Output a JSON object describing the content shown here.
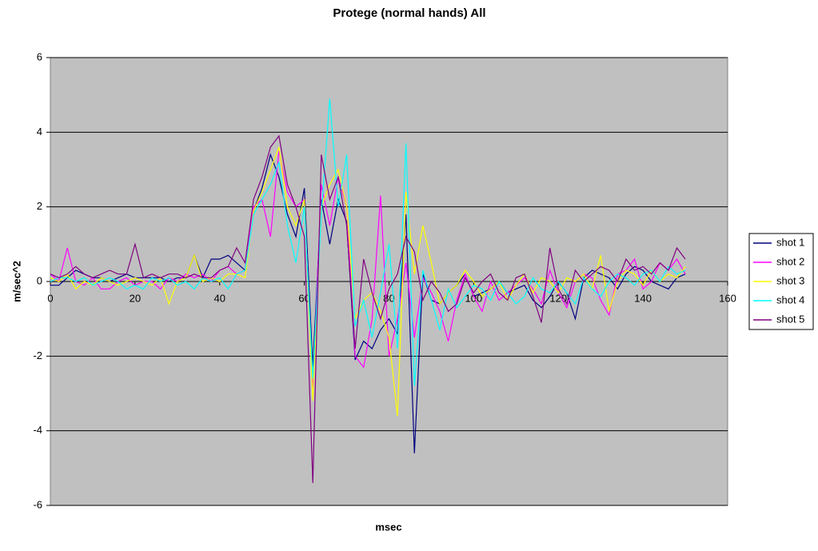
{
  "chart_data": {
    "type": "line",
    "title": "Protege (normal hands) All",
    "x_label": "msec",
    "y_label": "m/sec^2",
    "xlim": [
      0,
      160
    ],
    "xticks": [
      0,
      20,
      40,
      60,
      80,
      100,
      120,
      140,
      160
    ],
    "ylim": [
      -6,
      6
    ],
    "yticks": [
      -6,
      -4,
      -2,
      0,
      2,
      4,
      6
    ],
    "grid": true,
    "legend": "right",
    "x": [
      0,
      2,
      4,
      6,
      8,
      10,
      12,
      14,
      16,
      18,
      20,
      22,
      24,
      26,
      28,
      30,
      32,
      34,
      36,
      38,
      40,
      42,
      44,
      46,
      48,
      50,
      52,
      54,
      56,
      58,
      60,
      62,
      64,
      66,
      68,
      70,
      72,
      74,
      76,
      78,
      80,
      82,
      84,
      86,
      88,
      90,
      92,
      94,
      96,
      98,
      100,
      102,
      104,
      106,
      108,
      110,
      112,
      114,
      116,
      118,
      120,
      122,
      124,
      126,
      128,
      130,
      132,
      134,
      136,
      138,
      140,
      142,
      144,
      146,
      148,
      150
    ],
    "series": [
      {
        "name": "shot 1",
        "color": "#000080",
        "values": [
          -0.1,
          -0.1,
          0.1,
          0.3,
          0.2,
          0.1,
          0.1,
          0.0,
          0.1,
          0.2,
          0.1,
          0.1,
          0.1,
          0.1,
          0.0,
          0.1,
          0.1,
          0.7,
          0.1,
          0.6,
          0.6,
          0.7,
          0.5,
          0.3,
          1.9,
          2.5,
          3.4,
          2.8,
          1.8,
          1.2,
          2.5,
          -2.3,
          2.2,
          1.0,
          2.2,
          1.6,
          -2.1,
          -1.6,
          -1.8,
          -1.3,
          -1.0,
          -1.4,
          1.8,
          -4.6,
          0.2,
          -0.5,
          -0.6,
          -0.3,
          -0.1,
          0.2,
          -0.4,
          -0.3,
          -0.2,
          0.0,
          -0.3,
          -0.2,
          -0.1,
          -0.5,
          -0.7,
          -0.4,
          0.0,
          -0.3,
          -1.0,
          0.1,
          0.3,
          0.2,
          0.1,
          -0.2,
          0.2,
          0.4,
          0.3,
          0.0,
          -0.1,
          -0.2,
          0.1,
          0.2
        ]
      },
      {
        "name": "shot 2",
        "color": "#ff00ff",
        "values": [
          0.2,
          0.0,
          0.9,
          0.0,
          -0.1,
          0.1,
          -0.2,
          -0.2,
          0.0,
          0.1,
          -0.1,
          0.0,
          0.0,
          -0.2,
          0.1,
          0.0,
          0.2,
          0.1,
          0.2,
          0.0,
          0.3,
          0.4,
          0.2,
          0.3,
          2.0,
          2.2,
          1.2,
          3.5,
          2.4,
          2.0,
          2.2,
          -3.0,
          2.6,
          1.5,
          2.8,
          2.0,
          -2.0,
          -2.3,
          -1.0,
          2.3,
          -2.0,
          -1.0,
          0.5,
          -1.5,
          0.1,
          -0.3,
          -0.8,
          -1.6,
          -0.5,
          0.2,
          -0.4,
          -0.8,
          0.0,
          -0.5,
          -0.3,
          -0.1,
          0.1,
          -0.2,
          -0.6,
          0.3,
          -0.3,
          -0.7,
          0.0,
          0.2,
          0.1,
          -0.5,
          -0.9,
          0.2,
          0.3,
          0.6,
          -0.2,
          0.0,
          0.5,
          0.3,
          0.6,
          0.2
        ]
      },
      {
        "name": "shot 3",
        "color": "#ffff00",
        "values": [
          0.1,
          0.0,
          0.2,
          -0.2,
          0.0,
          -0.1,
          0.1,
          0.0,
          -0.1,
          0.0,
          0.1,
          0.0,
          -0.1,
          0.1,
          -0.6,
          0.0,
          0.1,
          0.7,
          0.0,
          0.1,
          0.0,
          0.2,
          0.2,
          0.1,
          1.9,
          2.4,
          3.0,
          3.6,
          2.0,
          1.5,
          2.2,
          -3.2,
          2.0,
          2.6,
          3.0,
          2.0,
          -1.0,
          -0.5,
          -0.3,
          -0.8,
          -1.5,
          -3.6,
          2.4,
          0.2,
          1.5,
          0.5,
          -0.6,
          -0.3,
          -0.1,
          0.3,
          0.0,
          -0.4,
          -0.2,
          0.0,
          -0.5,
          -0.1,
          0.2,
          -0.3,
          0.1,
          0.0,
          -0.3,
          0.1,
          0.0,
          0.2,
          -0.2,
          0.7,
          -0.8,
          0.0,
          0.3,
          0.2,
          -0.1,
          0.3,
          0.0,
          0.2,
          0.1,
          0.4
        ]
      },
      {
        "name": "shot 4",
        "color": "#00ffff",
        "values": [
          0.0,
          0.1,
          0.1,
          0.0,
          0.1,
          -0.1,
          0.0,
          0.1,
          0.0,
          -0.2,
          -0.1,
          -0.2,
          0.1,
          0.0,
          0.1,
          -0.1,
          0.0,
          -0.2,
          0.1,
          0.0,
          0.1,
          -0.2,
          0.2,
          0.3,
          1.8,
          2.2,
          2.6,
          3.2,
          1.5,
          0.5,
          2.0,
          -2.6,
          1.8,
          4.9,
          2.0,
          3.4,
          -1.2,
          -0.5,
          -1.5,
          -0.3,
          1.0,
          -1.8,
          3.7,
          -2.8,
          0.3,
          -0.5,
          -1.3,
          -0.2,
          -0.7,
          -0.4,
          -0.1,
          -0.2,
          -0.5,
          0.0,
          -0.3,
          -0.6,
          -0.4,
          0.1,
          -0.2,
          -0.3,
          0.0,
          -0.3,
          -0.6,
          0.1,
          -0.2,
          -0.4,
          0.0,
          0.2,
          0.1,
          -0.1,
          0.2,
          0.3,
          0.0,
          0.4,
          0.2,
          0.3
        ]
      },
      {
        "name": "shot 5",
        "color": "#800080",
        "values": [
          0.2,
          0.1,
          0.2,
          0.4,
          0.2,
          0.1,
          0.2,
          0.3,
          0.2,
          0.2,
          1.0,
          0.1,
          0.2,
          0.1,
          0.2,
          0.2,
          0.1,
          0.2,
          0.1,
          0.1,
          0.3,
          0.4,
          0.9,
          0.5,
          2.2,
          2.8,
          3.6,
          3.9,
          2.6,
          2.0,
          1.2,
          -5.4,
          3.4,
          2.2,
          2.8,
          1.5,
          -1.8,
          0.6,
          -0.3,
          -1.0,
          -0.2,
          0.2,
          1.2,
          0.8,
          -0.5,
          0.0,
          -0.3,
          -0.8,
          -0.6,
          0.1,
          -0.3,
          0.0,
          0.2,
          -0.3,
          -0.5,
          0.1,
          0.2,
          -0.4,
          -1.1,
          0.9,
          -0.2,
          -0.6,
          0.3,
          0.0,
          0.2,
          0.4,
          0.3,
          0.0,
          0.6,
          0.3,
          0.4,
          0.2,
          0.5,
          0.3,
          0.9,
          0.6
        ]
      }
    ]
  }
}
